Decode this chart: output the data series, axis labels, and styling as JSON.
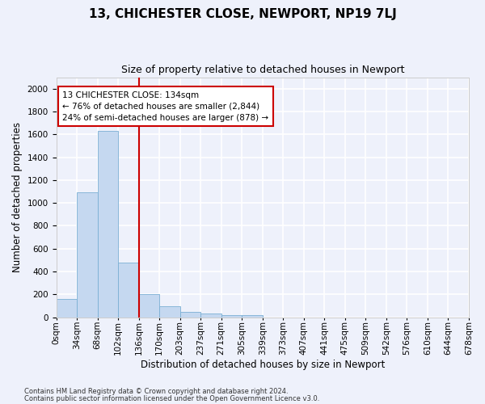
{
  "title": "13, CHICHESTER CLOSE, NEWPORT, NP19 7LJ",
  "subtitle": "Size of property relative to detached houses in Newport",
  "xlabel": "Distribution of detached houses by size in Newport",
  "ylabel": "Number of detached properties",
  "bar_values": [
    160,
    1090,
    1630,
    475,
    200,
    100,
    45,
    35,
    22,
    18,
    0,
    0,
    0,
    0,
    0,
    0,
    0,
    0,
    0,
    0
  ],
  "bin_labels": [
    "0sqm",
    "34sqm",
    "68sqm",
    "102sqm",
    "136sqm",
    "170sqm",
    "203sqm",
    "237sqm",
    "271sqm",
    "305sqm",
    "339sqm",
    "373sqm",
    "407sqm",
    "441sqm",
    "475sqm",
    "509sqm",
    "542sqm",
    "576sqm",
    "610sqm",
    "644sqm",
    "678sqm"
  ],
  "bar_color": "#c5d8f0",
  "bar_edge_color": "#7bafd4",
  "vline_color": "#cc0000",
  "annotation_text": "13 CHICHESTER CLOSE: 134sqm\n← 76% of detached houses are smaller (2,844)\n24% of semi-detached houses are larger (878) →",
  "annotation_box_color": "#ffffff",
  "annotation_box_edge": "#cc0000",
  "ylim": [
    0,
    2100
  ],
  "yticks": [
    0,
    200,
    400,
    600,
    800,
    1000,
    1200,
    1400,
    1600,
    1800,
    2000
  ],
  "footer_line1": "Contains HM Land Registry data © Crown copyright and database right 2024.",
  "footer_line2": "Contains public sector information licensed under the Open Government Licence v3.0.",
  "background_color": "#eef1fb",
  "grid_color": "#ffffff",
  "title_fontsize": 11,
  "subtitle_fontsize": 9,
  "axis_label_fontsize": 8.5,
  "tick_fontsize": 7.5,
  "footer_fontsize": 6,
  "annot_fontsize": 7.5
}
